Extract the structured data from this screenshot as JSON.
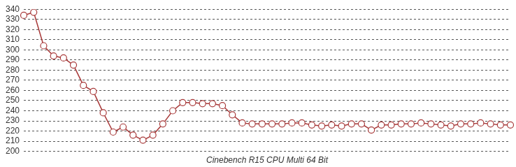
{
  "chart_data": {
    "type": "line",
    "x_label": "Cinebench R15 CPU Multi 64 Bit",
    "categories": [
      null,
      null,
      null,
      null,
      null,
      null,
      null,
      null,
      null,
      null,
      null,
      null,
      null,
      null,
      null,
      null,
      null,
      null,
      null,
      null,
      null,
      null,
      null,
      null,
      null,
      null,
      null,
      null,
      null,
      null,
      null,
      null,
      null,
      null,
      null,
      null,
      null,
      null,
      null,
      null,
      null,
      null,
      null,
      null,
      null,
      null,
      null,
      null,
      null,
      null
    ],
    "values": [
      334,
      337,
      304,
      294,
      292,
      285,
      265,
      259,
      238,
      219,
      224,
      216,
      211,
      216,
      227,
      240,
      248,
      248,
      247,
      247,
      245,
      236,
      228,
      227,
      227,
      227,
      227,
      228,
      228,
      226,
      225,
      226,
      225,
      227,
      227,
      221,
      226,
      226,
      227,
      227,
      228,
      227,
      226,
      225,
      227,
      227,
      228,
      227,
      226,
      226
    ],
    "color": "#a83a3a",
    "marker": "circle",
    "line_style": "solid",
    "ylim": [
      200,
      340
    ],
    "yticks": [
      200,
      210,
      220,
      230,
      240,
      250,
      260,
      270,
      280,
      290,
      300,
      310,
      320,
      330,
      340
    ],
    "grid": true,
    "tick_labels": "y"
  }
}
